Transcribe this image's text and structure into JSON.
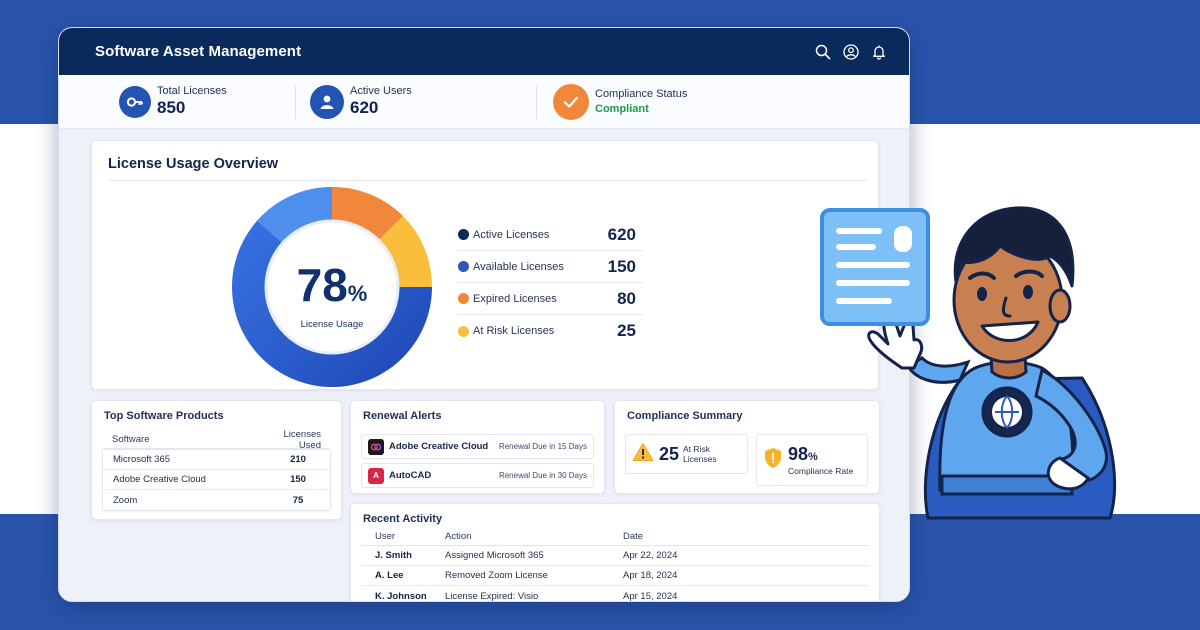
{
  "window": {
    "title": "Software Asset Management",
    "icons": [
      "search-icon",
      "user-icon",
      "bell-icon"
    ]
  },
  "stats": {
    "total_licenses": {
      "label": "Total Licenses",
      "value": "850",
      "icon": "key-icon"
    },
    "active_users": {
      "label": "Active Users",
      "value": "620",
      "icon": "user-icon"
    },
    "compliance_status": {
      "label": "Compliance Status",
      "value": "Compliant",
      "icon": "check-icon"
    }
  },
  "overview": {
    "title": "License Usage Overview",
    "center_value": "78",
    "center_unit": "%",
    "center_caption": "License Usage",
    "legend": [
      {
        "label": "Active Licenses",
        "value": "620",
        "color": "#0a2a5c"
      },
      {
        "label": "Available Licenses",
        "value": "150",
        "color": "#2f57b6"
      },
      {
        "label": "Expired Licenses",
        "value": "80",
        "color": "#f0873a"
      },
      {
        "label": "At Risk Licenses",
        "value": "25",
        "color": "#fbbd3c"
      }
    ]
  },
  "top_software": {
    "title": "Top Software Products",
    "columns": [
      "Software",
      "Licenses Used"
    ],
    "rows": [
      {
        "name": "Microsoft 365",
        "used": "210"
      },
      {
        "name": "Adobe Creative Cloud",
        "used": "150"
      },
      {
        "name": "Zoom",
        "used": "75"
      }
    ]
  },
  "renewal_alerts": {
    "title": "Renewal Alerts",
    "items": [
      {
        "name": "Adobe Creative Cloud",
        "due": "Renewal Due in 15 Days",
        "icon": "adobe-cc-icon"
      },
      {
        "name": "AutoCAD",
        "due": "Renewal Due in 30 Days",
        "icon": "autocad-icon",
        "logo_text": "A"
      }
    ]
  },
  "compliance_summary": {
    "title": "Compliance Summary",
    "at_risk_value": "25",
    "at_risk_label": "At Risk Licenses",
    "rate_value": "98",
    "rate_unit": "%",
    "rate_label": "Compliance Rate"
  },
  "recent_activity": {
    "title": "Recent Activity",
    "columns": [
      "User",
      "Action",
      "Date"
    ],
    "rows": [
      {
        "user": "J. Smith",
        "action": "Assigned Microsoft 365",
        "date": "Apr 22, 2024"
      },
      {
        "user": "A. Lee",
        "action": "Removed Zoom License",
        "date": "Apr 18, 2024"
      },
      {
        "user": "K. Johnson",
        "action": "License Expired: Visio",
        "date": "Apr 15, 2024"
      }
    ]
  },
  "illustration": {
    "icon": "superhero-mascot-illustration"
  }
}
